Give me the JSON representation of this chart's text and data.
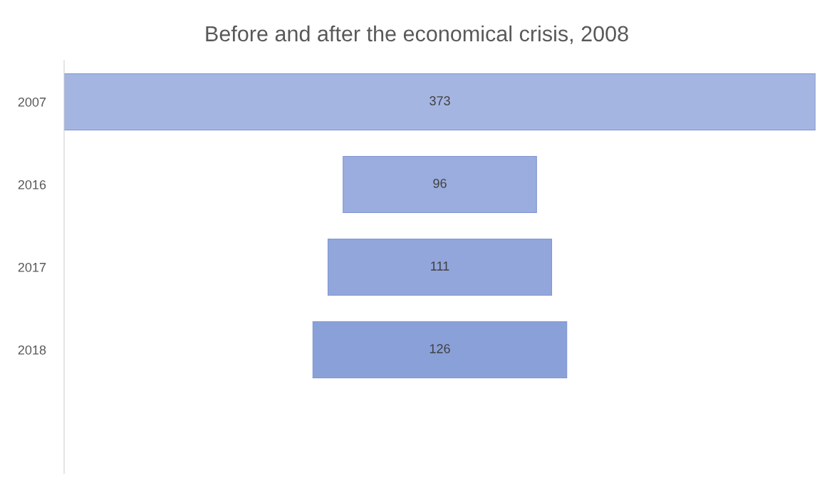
{
  "chart_data": {
    "type": "other",
    "title": "Before and after the economical crisis, 2008",
    "categories": [
      "2007",
      "2016",
      "2017",
      "2018"
    ],
    "values": [
      373,
      96,
      111,
      126
    ],
    "colors": [
      "#a5b5e2",
      "#9badde",
      "#93a6db",
      "#8aa0d8"
    ],
    "data_labels": true
  }
}
